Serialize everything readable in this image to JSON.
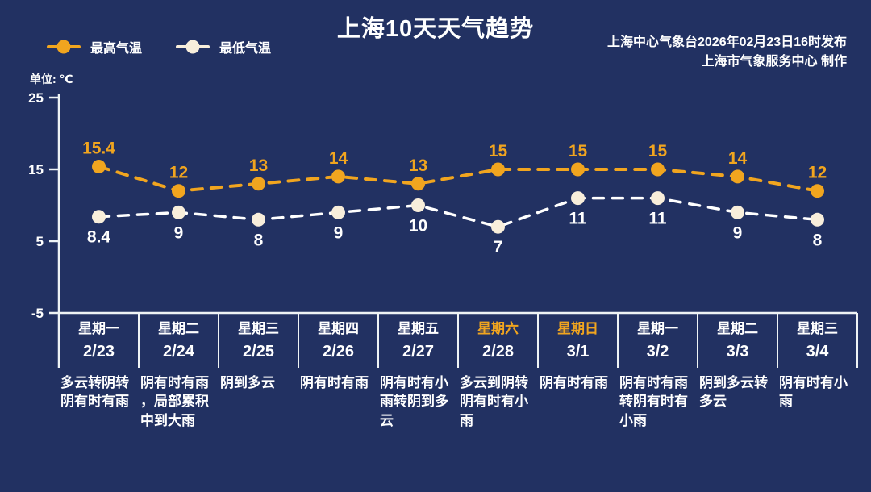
{
  "title": "上海10天天气趋势",
  "credits": {
    "line1": "上海中心气象台2026年02月23日16时发布",
    "line2": "上海市气象服务中心  制作"
  },
  "unit_label": "单位: ℃",
  "legend": [
    {
      "label": "最高气温",
      "color": "#f1a51f"
    },
    {
      "label": "最低气温",
      "color": "#f8eedb"
    }
  ],
  "colors": {
    "background": "#223162",
    "axis": "#eef3f5",
    "text": "#ffffff",
    "highlight_weekday": "#f1a51f"
  },
  "chart_data": {
    "type": "line",
    "title": "上海10天天气趋势",
    "ylabel": "单位: ℃",
    "ylim": [
      -5,
      25
    ],
    "yticks": [
      25,
      15,
      5,
      -5
    ],
    "grid": false,
    "legend_position": "top-left",
    "categories_weekday": [
      "星期一",
      "星期二",
      "星期三",
      "星期四",
      "星期五",
      "星期六",
      "星期日",
      "星期一",
      "星期二",
      "星期三"
    ],
    "categories_date": [
      "2/23",
      "2/24",
      "2/25",
      "2/26",
      "2/27",
      "2/28",
      "3/1",
      "3/2",
      "3/3",
      "3/4"
    ],
    "weekend_highlight": [
      false,
      false,
      false,
      false,
      false,
      true,
      true,
      false,
      false,
      false
    ],
    "weather_text": [
      "多云转阴转阴有时有雨",
      "阴有时有雨，局部累积中到大雨",
      "阴到多云",
      "阴有时有雨",
      "阴有时有小雨转阴到多云",
      "多云到阴转阴有时有小雨",
      "阴有时有雨",
      "阴有时有雨转阴有时有小雨",
      "阴到多云转多云",
      "阴有时有小雨"
    ],
    "series": [
      {
        "name": "最高气温",
        "values": [
          15.4,
          12,
          13,
          14,
          13,
          15,
          15,
          15,
          14,
          12
        ],
        "line_color": "#f1a51f",
        "marker_color": "#f1a51f",
        "label_color": "#f1a51f",
        "label_position": "above"
      },
      {
        "name": "最低气温",
        "values": [
          8.4,
          9,
          8,
          9,
          10,
          7,
          11,
          11,
          9,
          8
        ],
        "line_color": "#ffffff",
        "marker_color": "#f8eedb",
        "label_color": "#ffffff",
        "label_position": "below"
      }
    ]
  }
}
